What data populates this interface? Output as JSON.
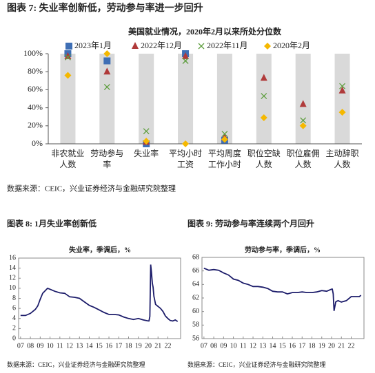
{
  "chart_data": [
    {
      "type": "scatter",
      "caption": "图表 7: 失业率创新低，劳动参与率进一步回升",
      "title": "美国就业情况，2020年2月以来所处分位数",
      "source": "数据来源：CEIC，兴业证券经济与金融研究院整理",
      "categories": [
        "非农就业人数",
        "劳动参与率",
        "失业率",
        "平均小时工资",
        "平均周度工作小时",
        "职位空缺人数",
        "职位雇佣人数",
        "主动辞职人数"
      ],
      "ylim": [
        0,
        100
      ],
      "yticks": [
        {
          "value": 0,
          "label": "0%"
        },
        {
          "value": 20,
          "label": "20%"
        },
        {
          "value": 40,
          "label": "40%"
        },
        {
          "value": 60,
          "label": "60%"
        },
        {
          "value": 80,
          "label": "80%"
        },
        {
          "value": 100,
          "label": "100%"
        }
      ],
      "legend": "top",
      "series": [
        {
          "name": "2023年1月",
          "color": "#3f6fb5",
          "marker": "square",
          "values": [
            100,
            92,
            0,
            100,
            4,
            null,
            null,
            null
          ]
        },
        {
          "name": "2022年12月",
          "color": "#b03a3a",
          "marker": "triangle",
          "values": [
            97,
            80,
            2,
            97,
            7,
            73,
            44,
            59
          ]
        },
        {
          "name": "2022年11月",
          "color": "#5e9e3e",
          "marker": "x",
          "values": [
            96,
            63,
            14,
            92,
            11,
            53,
            26,
            64
          ]
        },
        {
          "name": "2020年2月",
          "color": "#f5b800",
          "marker": "diamond",
          "values": [
            76,
            100,
            3,
            0,
            5,
            29,
            20,
            35
          ]
        }
      ]
    },
    {
      "type": "line",
      "caption": "图表 8: 1月失业率创新低",
      "title": "失业率，季调后，%",
      "source": "数据来源：CEIC，兴业证券经济与金融研究院整理",
      "color": "#1c1c6a",
      "xlim": [
        2006.8,
        2023.3
      ],
      "ylim": [
        0,
        16
      ],
      "yticks": [
        0,
        2,
        4,
        6,
        8,
        10,
        12,
        14,
        16
      ],
      "xticks": [
        {
          "value": 2007,
          "label": "07"
        },
        {
          "value": 2008,
          "label": "08"
        },
        {
          "value": 2009,
          "label": "09"
        },
        {
          "value": 2010,
          "label": "10"
        },
        {
          "value": 2011,
          "label": "11"
        },
        {
          "value": 2012,
          "label": "12"
        },
        {
          "value": 2013,
          "label": "13"
        },
        {
          "value": 2014,
          "label": "14"
        },
        {
          "value": 2015,
          "label": "15"
        },
        {
          "value": 2016,
          "label": "16"
        },
        {
          "value": 2017,
          "label": "17"
        },
        {
          "value": 2018,
          "label": "18"
        },
        {
          "value": 2019,
          "label": "19"
        },
        {
          "value": 2020,
          "label": "20"
        },
        {
          "value": 2021,
          "label": "21"
        },
        {
          "value": 2022,
          "label": "22"
        }
      ],
      "x": [
        2007,
        2007.5,
        2008,
        2008.5,
        2008.75,
        2009,
        2009.25,
        2009.5,
        2009.75,
        2010,
        2010.5,
        2011,
        2011.5,
        2012,
        2012.5,
        2013,
        2013.5,
        2014,
        2014.5,
        2015,
        2015.5,
        2016,
        2016.5,
        2017,
        2017.5,
        2018,
        2018.5,
        2019,
        2019.5,
        2020,
        2020.08,
        2020.17,
        2020.25,
        2020.33,
        2020.42,
        2020.5,
        2020.58,
        2020.75,
        2021,
        2021.25,
        2021.5,
        2021.75,
        2022,
        2022.25,
        2022.5,
        2022.75,
        2023
      ],
      "values": [
        4.6,
        4.6,
        5.0,
        5.8,
        6.5,
        7.8,
        9.0,
        9.5,
        10.0,
        9.8,
        9.4,
        9.1,
        9.0,
        8.3,
        8.2,
        8.0,
        7.3,
        6.6,
        6.2,
        5.7,
        5.2,
        4.8,
        4.8,
        4.7,
        4.3,
        4.0,
        3.8,
        4.0,
        3.7,
        3.5,
        3.5,
        4.4,
        14.7,
        13.2,
        11.0,
        10.2,
        8.4,
        6.8,
        6.4,
        6.0,
        5.4,
        4.5,
        4.0,
        3.6,
        3.5,
        3.7,
        3.4
      ]
    },
    {
      "type": "line",
      "caption": "图表 9: 劳动参与率连续两个月回升",
      "title": "劳动参与率，季调后，%",
      "source": "数据来源：CEIC，兴业证券经济与金融研究院整理",
      "color": "#1c1c6a",
      "xlim": [
        2006.8,
        2023.3
      ],
      "ylim": [
        56,
        68
      ],
      "yticks": [
        56,
        58,
        60,
        62,
        64,
        66,
        68
      ],
      "xticks": [
        {
          "value": 2007,
          "label": "07"
        },
        {
          "value": 2008,
          "label": "08"
        },
        {
          "value": 2009,
          "label": "09"
        },
        {
          "value": 2010,
          "label": "10"
        },
        {
          "value": 2011,
          "label": "11"
        },
        {
          "value": 2012,
          "label": "12"
        },
        {
          "value": 2013,
          "label": "13"
        },
        {
          "value": 2014,
          "label": "14"
        },
        {
          "value": 2015,
          "label": "15"
        },
        {
          "value": 2016,
          "label": "16"
        },
        {
          "value": 2017,
          "label": "17"
        },
        {
          "value": 2018,
          "label": "18"
        },
        {
          "value": 2019,
          "label": "19"
        },
        {
          "value": 2020,
          "label": "20"
        },
        {
          "value": 2021,
          "label": "21"
        },
        {
          "value": 2022,
          "label": "22"
        }
      ],
      "x": [
        2007,
        2007.5,
        2008,
        2008.5,
        2009,
        2009.5,
        2010,
        2010.5,
        2011,
        2011.5,
        2012,
        2012.5,
        2013,
        2013.5,
        2014,
        2014.5,
        2015,
        2015.5,
        2016,
        2016.5,
        2017,
        2017.5,
        2018,
        2018.5,
        2019,
        2019.5,
        2020,
        2020.08,
        2020.17,
        2020.25,
        2020.33,
        2020.42,
        2020.5,
        2020.67,
        2021,
        2021.5,
        2022,
        2022.5,
        2022.83,
        2023
      ],
      "values": [
        66.4,
        66.1,
        66.2,
        66.1,
        65.7,
        65.4,
        64.8,
        64.6,
        64.2,
        64.0,
        63.7,
        63.7,
        63.6,
        63.4,
        63.0,
        62.9,
        62.9,
        62.6,
        62.8,
        62.8,
        62.9,
        62.8,
        62.8,
        62.9,
        63.1,
        63.0,
        63.3,
        63.3,
        62.6,
        60.1,
        60.7,
        61.4,
        61.5,
        61.6,
        61.4,
        61.6,
        62.2,
        62.2,
        62.2,
        62.4
      ]
    }
  ]
}
